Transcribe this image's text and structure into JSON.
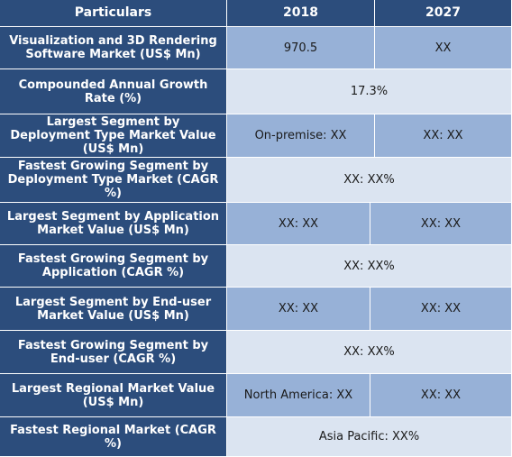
{
  "header": {
    "particulars": "Particulars",
    "year_a": "2018",
    "year_b": "2027"
  },
  "rows": [
    {
      "label": "Visualization and 3D Rendering Software Market (US$ Mn)",
      "v2018": "970.5",
      "v2027": "XX"
    },
    {
      "label": "Compounded Annual Growth Rate (%)",
      "merged": "17.3%"
    },
    {
      "label": "Largest Segment by Deployment Type Market Value (US$ Mn)",
      "v2018": "On-premise: XX",
      "v2027": "XX: XX"
    },
    {
      "label": "Fastest Growing Segment by Deployment Type Market (CAGR %)",
      "merged": "XX: XX%"
    },
    {
      "label": "Largest Segment by Application Market Value (US$ Mn)",
      "v2018": "XX: XX",
      "v2027": "XX: XX"
    },
    {
      "label": "Fastest Growing Segment by Application (CAGR %)",
      "merged": "XX: XX%"
    },
    {
      "label": "Largest Segment by End-user Market Value (US$ Mn)",
      "v2018": "XX: XX",
      "v2027": "XX: XX"
    },
    {
      "label": "Fastest Growing Segment by End-user (CAGR %)",
      "merged": "XX: XX%"
    },
    {
      "label": "Largest Regional Market Value (US$ Mn)",
      "v2018": "North America: XX",
      "v2027": "XX: XX"
    },
    {
      "label": "Fastest Regional Market (CAGR %)",
      "merged": "Asia Pacific: XX%"
    }
  ]
}
